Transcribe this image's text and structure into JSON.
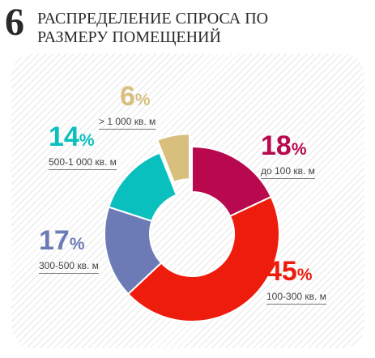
{
  "figure_number": "6",
  "title": "РАСПРЕДЕЛЕНИЕ СПРОСА ПО\nРАЗМЕРУ ПОМЕЩЕНИЙ",
  "chart_data": {
    "type": "pie",
    "donut": true,
    "percent_sign": "%",
    "slices": [
      {
        "id": "s1",
        "value": 18,
        "range": "до 100 кв. м",
        "color": "#b8094f"
      },
      {
        "id": "s2",
        "value": 45,
        "range": "100-300 кв. м",
        "color": "#ee1c0c"
      },
      {
        "id": "s3",
        "value": 17,
        "range": "300-500 кв. м",
        "color": "#6c7bb5"
      },
      {
        "id": "s4",
        "value": 14,
        "range": "500-1 000 кв. м",
        "color": "#0ac0bf"
      },
      {
        "id": "s5",
        "value": 6,
        "range": "> 1 000 кв. м",
        "color": "#d8bf7e",
        "exploded": true
      }
    ]
  }
}
